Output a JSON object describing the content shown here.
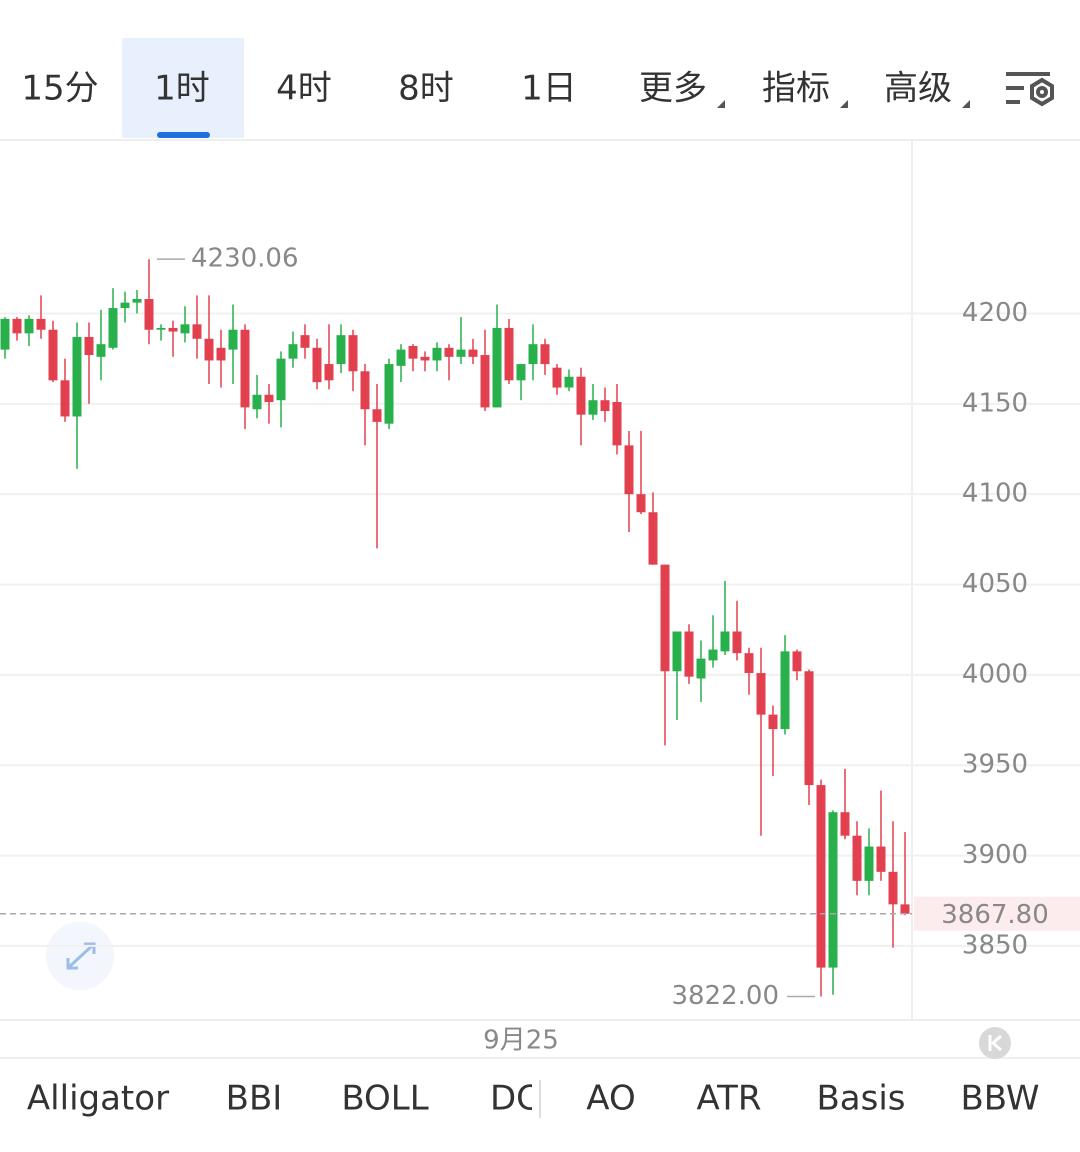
{
  "tabs": [
    "15分",
    "1时",
    "4时",
    "8时",
    "1日",
    "更多",
    "指标",
    "高级"
  ],
  "active_tab": 1,
  "chart_data": {
    "type": "candlestick",
    "categories": [
      null,
      null,
      null,
      null,
      null,
      null,
      null,
      null,
      null,
      null,
      null,
      null,
      null,
      null,
      null,
      null,
      null,
      null,
      null,
      null,
      null,
      null,
      null,
      null,
      null,
      null,
      null,
      null,
      null,
      null,
      null,
      null,
      null,
      null,
      null,
      null,
      null,
      null,
      null,
      null,
      null,
      null,
      null,
      "9月25",
      null,
      null,
      null,
      null,
      null,
      null,
      null,
      null,
      null,
      null,
      null,
      null,
      null,
      null,
      null,
      null,
      null,
      null,
      null,
      null,
      null,
      null,
      null,
      null,
      null,
      null,
      null,
      null,
      null,
      null,
      null,
      null
    ],
    "open": [
      4180,
      4197,
      4189,
      4197,
      4191,
      4163,
      4143,
      4187,
      4176,
      4181,
      4203,
      4206,
      4208,
      4191,
      4192,
      4189,
      4194,
      4186,
      4181,
      4180,
      4191,
      4147,
      4155,
      4152,
      4175,
      4188,
      4181,
      4172,
      4172,
      4188,
      4168,
      4147,
      4139,
      4171,
      4182,
      4176,
      4174,
      4181,
      4176,
      4180,
      4177,
      4148,
      4192,
      4163,
      4172,
      4183,
      4170,
      4159,
      4165,
      4144,
      4152,
      4151,
      4127,
      4100,
      4090,
      4061,
      4002,
      4024,
      3998,
      4008,
      4013,
      4024,
      4012,
      4001,
      3978,
      3970,
      4013,
      4002,
      3939,
      3838,
      3924,
      3911,
      3886,
      3905,
      3891,
      3873
    ],
    "high": [
      4198,
      4198,
      4199,
      4210,
      4196,
      4175,
      4195,
      4195,
      4202,
      4214,
      4212,
      4213,
      4230.06,
      4194,
      4196,
      4204,
      4210,
      4210,
      4191,
      4205,
      4194,
      4166,
      4161,
      4179,
      4190,
      4194,
      4186,
      4194,
      4194,
      4191,
      4172,
      4161,
      4175,
      4183,
      4183,
      4179,
      4184,
      4183,
      4198,
      4186,
      4191,
      4205,
      4197,
      4172,
      4194,
      4186,
      4172,
      4169,
      4170,
      4161,
      4159,
      4161,
      4135,
      4135,
      4101,
      4061,
      4024,
      4028,
      4019,
      4033,
      4052,
      4041,
      4015,
      4015,
      3983,
      4022,
      4014,
      4003,
      3942,
      3925,
      3948,
      3919,
      3915,
      3936,
      3919,
      3913
    ],
    "low": [
      4175,
      4185,
      4182,
      4186,
      4162,
      4140,
      4114,
      4150,
      4163,
      4180,
      4195,
      4200,
      4183,
      4185,
      4176,
      4184,
      4175,
      4161,
      4159,
      4161,
      4136,
      4142,
      4139,
      4137,
      4170,
      4175,
      4158,
      4158,
      4167,
      4157,
      4127,
      4070,
      4136,
      4162,
      4168,
      4168,
      4168,
      4163,
      4172,
      4172,
      4146,
      4148,
      4161,
      4152,
      4163,
      4166,
      4155,
      4157,
      4127,
      4141,
      4140,
      4122,
      4079,
      4089,
      4061,
      3961,
      3975,
      3995,
      3985,
      4004,
      4011,
      4008,
      3989,
      3911,
      3944,
      3967,
      3997,
      3928,
      3822,
      3823,
      3909,
      3878,
      3878,
      3886,
      3849,
      3867
    ],
    "close": [
      4197,
      4189,
      4197,
      4191,
      4163,
      4143,
      4187,
      4177,
      4183,
      4203,
      4206,
      4208,
      4191,
      4192,
      4190,
      4194,
      4186,
      4174,
      4174,
      4191,
      4148,
      4155,
      4151,
      4175,
      4183,
      4181,
      4162,
      4163,
      4188,
      4168,
      4147,
      4140,
      4172,
      4180,
      4175,
      4174,
      4181,
      4176,
      4180,
      4176,
      4148,
      4192,
      4163,
      4172,
      4183,
      4172,
      4159,
      4165,
      4144,
      4152,
      4146,
      4127,
      4100,
      4090,
      4061,
      4002,
      4024,
      3999,
      4009,
      4014,
      4024,
      4012,
      4001,
      3978,
      3970,
      4013,
      4002,
      3939,
      3838,
      3924,
      3911,
      3886,
      3905,
      3891,
      3873,
      3867.8
    ],
    "up_color": "#27b04b",
    "down_color": "#e2404f",
    "ylim": [
      3809,
      4296
    ],
    "yticks": [
      3850,
      3900,
      3950,
      4000,
      4050,
      4100,
      4150,
      4200
    ],
    "grid": true,
    "max_label": 4230.06,
    "min_label": {
      "value": 3822,
      "label": "3822.00"
    },
    "last_price": {
      "value": 3867.8,
      "label": "3867.80"
    }
  },
  "indicators": [
    "Alligator",
    "BBI",
    "BOLL",
    "DC",
    "AO",
    "ATR",
    "Basis",
    "BBW"
  ]
}
